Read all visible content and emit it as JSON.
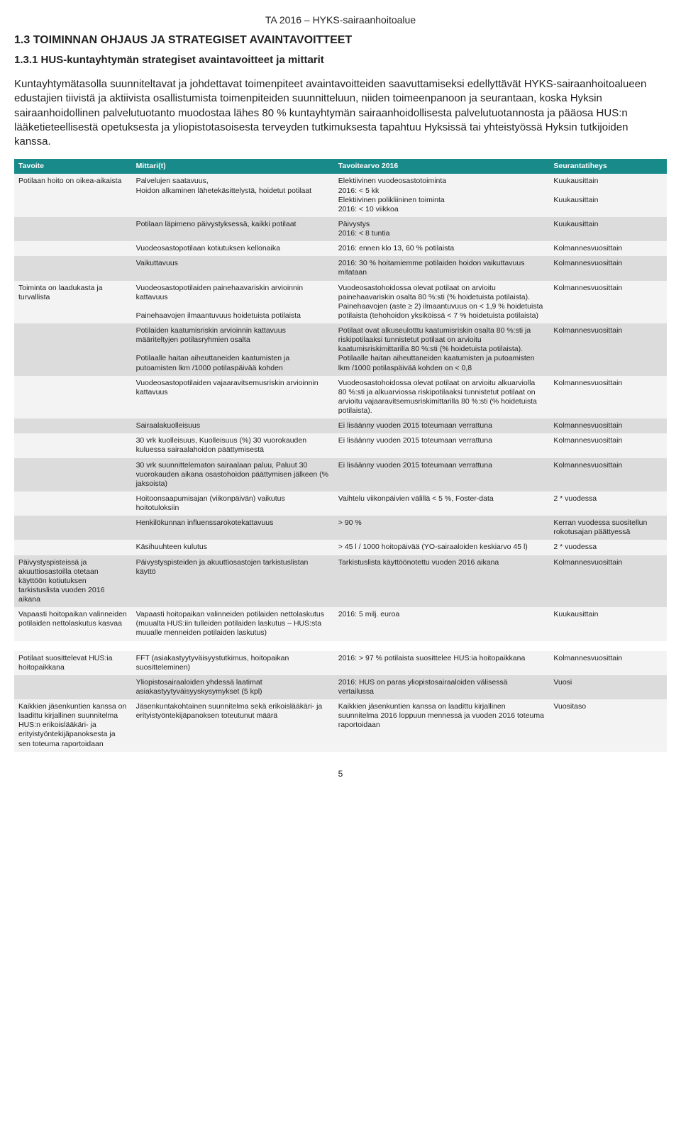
{
  "doc": {
    "running_header": "TA 2016 – HYKS-sairaanhoitoalue",
    "h1": "1.3 TOIMINNAN OHJAUS JA STRATEGISET AVAINTAVOITTEET",
    "h2": "1.3.1 HUS-kuntayhtymän strategiset avaintavoitteet ja mittarit",
    "paragraph": "Kuntayhtymätasolla suunniteltavat ja johdettavat toimenpiteet avaintavoitteiden saavuttamiseksi edellyttävät HYKS-sairaanhoitoalueen edustajien tiivistä ja aktiivista osallistumista toimenpiteiden suunnitteluun, niiden toimeenpanoon ja seurantaan, koska Hyksin sairaanhoidollinen palvelutuotanto muodostaa lähes 80 % kuntayhtymän sairaanhoidollisesta palvelutuotannosta ja pääosa HUS:n lääketieteellisestä opetuksesta ja yliopistotasoisesta terveyden tutkimuksesta tapahtuu Hyksissä tai yhteistyössä Hyksin tutkijoiden kanssa.",
    "page_number": "5"
  },
  "table": {
    "style": {
      "header_bg": "#188a8a",
      "header_color": "#ffffff",
      "band_a": "#f3f3f3",
      "band_b": "#dcdcdc",
      "font_size": 10.5
    },
    "headers": {
      "tavoite": "Tavoite",
      "mittari": "Mittari(t)",
      "tavoitearvo": "Tavoitearvo 2016",
      "seuranta": "Seurantatiheys"
    },
    "rows": [
      {
        "band": "a",
        "tavoite": "Potilaan hoito on oikea-aikaista",
        "mittari": "Palvelujen saatavuus,\nHoidon alkaminen lähetekäsittelystä, hoidetut potilaat",
        "arvo": "Elektiivinen vuodeosastotoiminta\n2016: < 5 kk\nElektiivinen polikliininen toiminta\n2016: < 10 viikkoa",
        "seuranta": "Kuukausittain\n\nKuukausittain"
      },
      {
        "band": "b",
        "mittari": "Potilaan läpimeno päivystyksessä, kaikki potilaat",
        "arvo": "Päivystys\n2016: < 8 tuntia",
        "seuranta": "Kuukausittain"
      },
      {
        "band": "a",
        "mittari": "Vuodeosastopotilaan kotiutuksen kellonaika",
        "arvo": "2016: ennen klo 13, 60 % potilaista",
        "seuranta": "Kolmannesvuosittain"
      },
      {
        "band": "b",
        "mittari": "Vaikuttavuus",
        "arvo": "2016: 30 % hoitamiemme potilaiden hoidon vaikuttavuus mitataan",
        "seuranta": "Kolmannesvuosittain"
      },
      {
        "band": "a",
        "tavoite": "Toiminta on laadukasta ja turvallista",
        "mittari": "Vuodeosastopotilaiden painehaavariskin arvioinnin kattavuus\n\nPainehaavojen ilmaantuvuus hoidetuista potilaista",
        "arvo": "Vuodeosastohoidossa olevat potilaat on arvioitu painehaavariskin osalta 80 %:sti (% hoidetuista potilaista).\nPainehaavojen (aste ≥ 2) ilmaantuvuus on < 1,9 % hoidetuista potilaista (tehohoidon yksiköissä < 7 % hoidetuista potilaista)",
        "seuranta": "Kolmannesvuosittain"
      },
      {
        "band": "b",
        "mittari": "Potilaiden kaatumisriskin arvioinnin kattavuus määriteltyjen potilasryhmien osalta\n\nPotilaalle haitan aiheuttaneiden kaatumisten ja putoamisten lkm /1000 potilaspäivää kohden",
        "arvo": "Potilaat ovat alkuseulotttu kaatumisriskin osalta 80 %:sti ja riskipotilaaksi tunnistetut potilaat on arvioitu kaatumisriskimittarilla 80 %:sti (% hoidetuista potilaista).\nPotilaalle haitan aiheuttaneiden kaatumisten ja putoamisten lkm /1000 potilaspäivää kohden on < 0,8",
        "seuranta": "Kolmannesvuosittain"
      },
      {
        "band": "a",
        "mittari": "Vuodeosastopotilaiden vajaaravitsemusriskin arvioinnin kattavuus",
        "arvo": "Vuodeosastohoidossa olevat potilaat on arvioitu alkuarviolla 80 %:sti ja alkuarviossa riskipotilaaksi tunnistetut potilaat on arvioitu vajaaravitsemusriskimittarilla 80 %:sti (% hoidetuista potilaista).",
        "seuranta": "Kolmannesvuosittain"
      },
      {
        "band": "b",
        "mittari": "Sairaalakuolleisuus",
        "arvo": "Ei lisäänny vuoden 2015 toteumaan verrattuna",
        "seuranta": "Kolmannesvuosittain"
      },
      {
        "band": "a",
        "mittari": "30 vrk kuolleisuus, Kuolleisuus (%) 30 vuorokauden kuluessa sairaalahoidon päättymisestä",
        "arvo": "Ei lisäänny vuoden 2015 toteumaan verrattuna",
        "seuranta": "Kolmannesvuosittain"
      },
      {
        "band": "b",
        "mittari": "30 vrk suunnittelematon sairaalaan paluu, Paluut 30 vuorokauden aikana osastohoidon päättymisen jälkeen (% jaksoista)",
        "arvo": "Ei lisäänny vuoden 2015 toteumaan verrattuna",
        "seuranta": "Kolmannesvuosittain"
      },
      {
        "band": "a",
        "mittari": "Hoitoonsaapumisajan (viikonpäivän) vaikutus hoitotuloksiin",
        "arvo": "Vaihtelu viikonpäivien välillä < 5 %, Foster-data",
        "seuranta": "2 * vuodessa"
      },
      {
        "band": "b",
        "mittari": "Henkilökunnan influenssarokotekattavuus",
        "arvo": "> 90 %",
        "seuranta": "Kerran vuodessa suositellun rokotusajan päättyessä"
      },
      {
        "band": "a",
        "mittari": "Käsihuuhteen kulutus",
        "arvo": "> 45 l / 1000 hoitopäivää (YO-sairaaloiden keskiarvo 45 l)",
        "seuranta": "2 * vuodessa"
      },
      {
        "band": "b",
        "tavoite": "Päivystyspisteissä ja akuuttiosastoilla otetaan käyttöön kotiutuksen tarkistuslista vuoden 2016 aikana",
        "mittari": "Päivystyspisteiden ja akuuttiosastojen tarkistuslistan käyttö",
        "arvo": "Tarkistuslista käyttöönotettu vuoden 2016 aikana",
        "seuranta": "Kolmannesvuosittain"
      },
      {
        "band": "a",
        "tavoite": "Vapaasti hoitopaikan valinneiden potilaiden nettolaskutus kasvaa",
        "mittari": "Vapaasti hoitopaikan valinneiden potilaiden nettolaskutus (muualta HUS:iin tulleiden potilaiden laskutus – HUS:sta muualle menneiden potilaiden laskutus)",
        "arvo": "2016: 5 milj. euroa",
        "seuranta": "Kuukausittain"
      },
      {
        "gap": true
      },
      {
        "band": "a",
        "tavoite": "Potilaat suosittelevat HUS:ia hoitopaikkana",
        "mittari": "FFT (asiakastyytyväisyystutkimus, hoitopaikan suositteleminen)",
        "arvo": "2016: > 97 % potilaista suosittelee HUS:ia hoitopaikkana",
        "seuranta": "Kolmannesvuosittain"
      },
      {
        "band": "b",
        "mittari": "Yliopistosairaaloiden yhdessä laatimat asiakastyytyväisyyskysymykset (5 kpl)",
        "arvo": "2016: HUS on paras yliopistosairaaloiden välisessä vertailussa",
        "seuranta": "Vuosi"
      },
      {
        "band": "a",
        "tavoite": "Kaikkien jäsenkuntien kanssa on laadittu kirjallinen suunnitelma HUS:n erikoislääkäri- ja erityistyöntekijäpanoksesta ja sen toteuma raportoidaan",
        "mittari": "Jäsenkuntakohtainen suunnitelma sekä erikoislääkäri- ja erityistyöntekijäpanoksen toteutunut määrä",
        "arvo": "Kaikkien jäsenkuntien kanssa on laadittu kirjallinen suunnitelma 2016 loppuun mennessä ja vuoden 2016 toteuma raportoidaan",
        "seuranta": "Vuositaso"
      }
    ]
  }
}
